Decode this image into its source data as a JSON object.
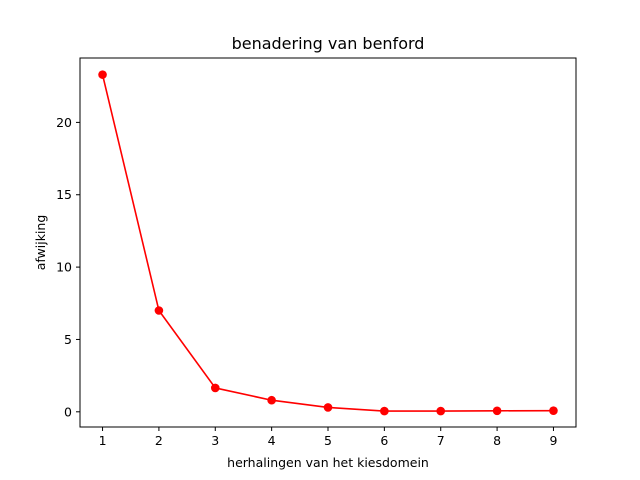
{
  "chart_data": {
    "type": "line",
    "title": "benadering van benford",
    "xlabel": "herhalingen van het kiesdomein",
    "ylabel": "afwijking",
    "xlim": [
      0.6,
      9.4
    ],
    "ylim": [
      -1.05,
      24.45
    ],
    "xticks": [
      1,
      2,
      3,
      4,
      5,
      6,
      7,
      8,
      9
    ],
    "yticks": [
      0,
      5,
      10,
      15,
      20
    ],
    "grid": false,
    "series": [
      {
        "color": "#ff0000",
        "marker": "circle",
        "x": [
          1,
          2,
          3,
          4,
          5,
          6,
          7,
          8,
          9
        ],
        "y": [
          23.3,
          7.0,
          1.65,
          0.8,
          0.3,
          0.05,
          0.05,
          0.07,
          0.08
        ]
      }
    ]
  }
}
